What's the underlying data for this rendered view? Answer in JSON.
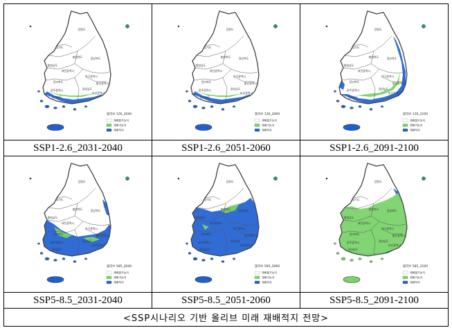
{
  "caption_bottom": "<SSP시나리오 기반 올리브 미래 재배적지 전망>",
  "colors": {
    "sea_border": "#3c3c3c",
    "unsuitable": "#ffffff",
    "possible": "#7ad36b",
    "suitable": "#1f5fd1"
  },
  "panels": [
    {
      "caption": "SSP1-2.6_2031-2040",
      "legend_title": "올리브 126_2040",
      "legend_items": [
        "재배불가능지",
        "재배가능지",
        "재배적지"
      ],
      "coverage": "south-coast",
      "labels": [
        "강원도",
        "경기도",
        "충청북도",
        "경상북도",
        "충청남도",
        "대전광역시",
        "전라북도",
        "대구광역시",
        "경상남도",
        "울산광역시",
        "광주광역시",
        "부산광역시",
        "전라남도"
      ]
    },
    {
      "caption": "SSP1-2.6_2051-2060",
      "legend_title": "올리브 126_2060",
      "legend_items": [
        "재배불가능지",
        "재배가능지",
        "재배적지"
      ],
      "coverage": "south-coast",
      "labels": [
        "강원도",
        "경기도",
        "충청북도",
        "경상북도",
        "충청남도",
        "대전광역시",
        "전라북도",
        "대구광역시",
        "경상남도",
        "울산광역시",
        "광주광역시",
        "부산광역시",
        "전라남도"
      ]
    },
    {
      "caption": "SSP1-2.6_2091-2100",
      "legend_title": "올리브 126_2100",
      "legend_items": [
        "재배불가능지",
        "재배가능지",
        "재배적지"
      ],
      "coverage": "coast-wide",
      "labels": [
        "강원도",
        "경기도",
        "충청북도",
        "경상북도",
        "충청남도",
        "대전광역시",
        "전라북도",
        "대구광역시",
        "경상남도",
        "울산광역시",
        "광주광역시",
        "부산광역시",
        "전라남도"
      ]
    },
    {
      "caption": "SSP5-8.5_2031-2040",
      "legend_title": "올리브 585_2040",
      "legend_items": [
        "재배불가능지",
        "재배가능지",
        "재배적지"
      ],
      "coverage": "south-west",
      "labels": [
        "강원도",
        "경기도",
        "충청북도",
        "경상북도",
        "충청남도",
        "대전광역시",
        "전라북도",
        "대구광역시",
        "경상남도",
        "울산광역시",
        "광주광역시",
        "부산광역시",
        "전라남도"
      ]
    },
    {
      "caption": "SSP5-8.5_2051-2060",
      "legend_title": "올리브 585_2060",
      "legend_items": [
        "재배불가능지",
        "재배가능지",
        "재배적지"
      ],
      "coverage": "most-blue",
      "labels": [
        "강원도",
        "경기도",
        "충청북도",
        "경상북도",
        "충청남도",
        "대전광역시",
        "전라북도",
        "대구광역시",
        "경상남도",
        "울산광역시",
        "광주광역시",
        "부산광역시",
        "전라남도"
      ]
    },
    {
      "caption": "SSP5-8.5_2091-2100",
      "legend_title": "올리브 585_2100",
      "legend_items": [
        "재배불가능지",
        "재배가능지",
        "재배적지"
      ],
      "coverage": "most-green",
      "labels": [
        "강원도",
        "경기도",
        "충청북도",
        "경상북도",
        "충청남도",
        "대전광역시",
        "전라북도",
        "대구광역시",
        "경상남도",
        "울산광역시",
        "광주광역시",
        "부산광역시",
        "전라남도"
      ]
    }
  ]
}
